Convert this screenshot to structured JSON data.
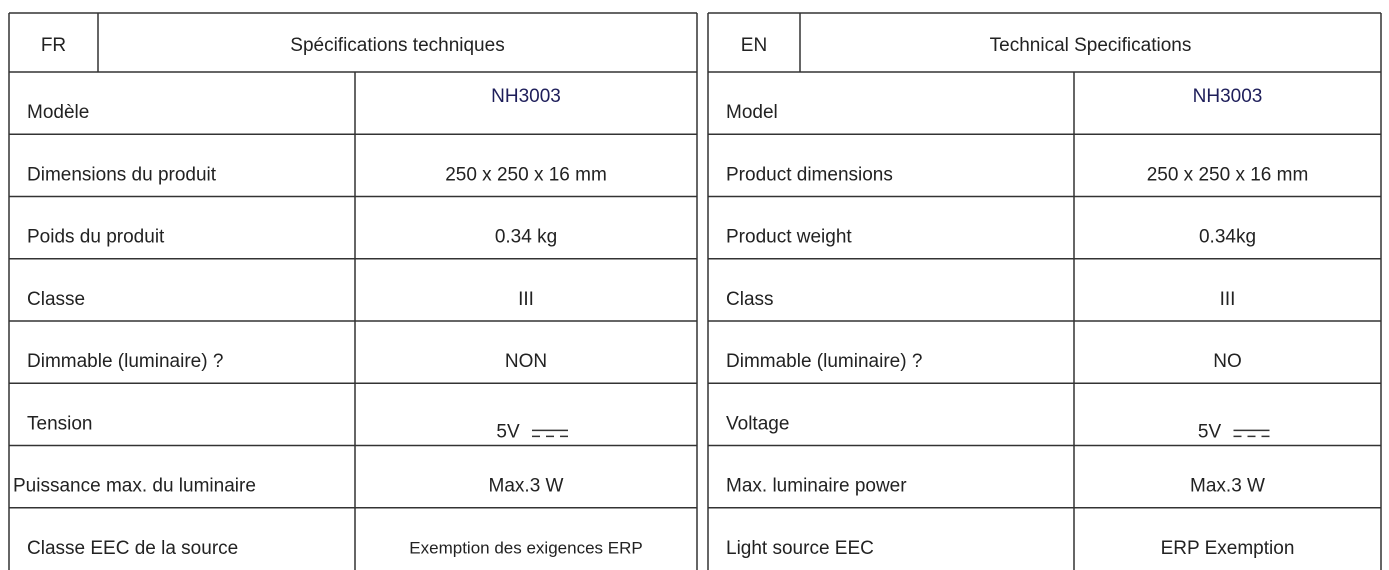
{
  "tables": [
    {
      "code": "FR",
      "title": "Spécifications techniques",
      "rows": [
        [
          "Modèle",
          "NH3003"
        ],
        [
          "Dimensions du produit",
          "250 x 250 x 16 mm"
        ],
        [
          "Poids du produit",
          "0.34 kg"
        ],
        [
          "Classe",
          "III"
        ],
        [
          "Dimmable (luminaire) ?",
          "NON"
        ],
        [
          "Tension",
          "5V"
        ],
        [
          "Puissance max. du luminaire",
          "Max.3 W"
        ],
        [
          "Classe EEC de la source",
          "Exemption des exigences ERP"
        ]
      ]
    },
    {
      "code": "EN",
      "title": "Technical Specifications",
      "rows": [
        [
          "Model",
          "NH3003"
        ],
        [
          "Product dimensions",
          "250 x 250 x 16 mm"
        ],
        [
          "Product weight",
          "0.34kg"
        ],
        [
          "Class",
          "III"
        ],
        [
          "Dimmable (luminaire) ?",
          "NO"
        ],
        [
          "Voltage",
          "5V"
        ],
        [
          "Max. luminaire power",
          "Max.3 W"
        ],
        [
          "Light source EEC",
          "ERP Exemption"
        ]
      ]
    }
  ]
}
